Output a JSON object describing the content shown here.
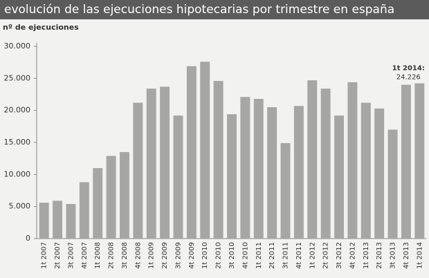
{
  "chart_data": {
    "type": "bar",
    "title": "evolución de las ejecuciones hipotecarias por trimestre en españa",
    "subtitle": "nº de ejecuciones",
    "categories": [
      "1t 2007",
      "2t 2007",
      "3t 2007",
      "4t 2007",
      "1t 2008",
      "2t 2008",
      "3t 2008",
      "4t 2008",
      "1t 2009",
      "2t 2009",
      "3t 2009",
      "4t 2009",
      "1t 2010",
      "2t 2010",
      "3t 2010",
      "4t 2010",
      "1t 2011",
      "2t 2011",
      "3t 2011",
      "4t 2011",
      "1t 2012",
      "2t 2012",
      "3t 2012",
      "4t 2012",
      "1t 2013",
      "2t 2013",
      "3t 2013",
      "4t 2013",
      "1t 2014"
    ],
    "values": [
      5600,
      5900,
      5400,
      8800,
      11000,
      12900,
      13500,
      21200,
      23400,
      23700,
      19200,
      26900,
      27600,
      24600,
      19400,
      22100,
      21800,
      20500,
      14900,
      20700,
      24700,
      23400,
      19200,
      24400,
      21200,
      20300,
      17000,
      24000,
      24226
    ],
    "value_labels": [
      null,
      null,
      null,
      null,
      null,
      null,
      null,
      null,
      null,
      null,
      null,
      null,
      null,
      null,
      null,
      null,
      null,
      null,
      null,
      null,
      null,
      null,
      null,
      null,
      null,
      null,
      null,
      null,
      "24.226"
    ],
    "annotation": "1t 2014:",
    "color": "#a6a6a4",
    "ylim": [
      0,
      30000
    ],
    "yticks": [
      0,
      {
        "value": 5000,
        "label": "5.000"
      },
      {
        "value": 10000,
        "label": "10.000"
      },
      {
        "value": 15000,
        "label": "15.000"
      },
      {
        "value": 20000,
        "label": "20.000"
      },
      {
        "value": 25000,
        "label": "25.000"
      },
      {
        "value": 30000,
        "label": "30.000"
      }
    ],
    "grid": false
  }
}
